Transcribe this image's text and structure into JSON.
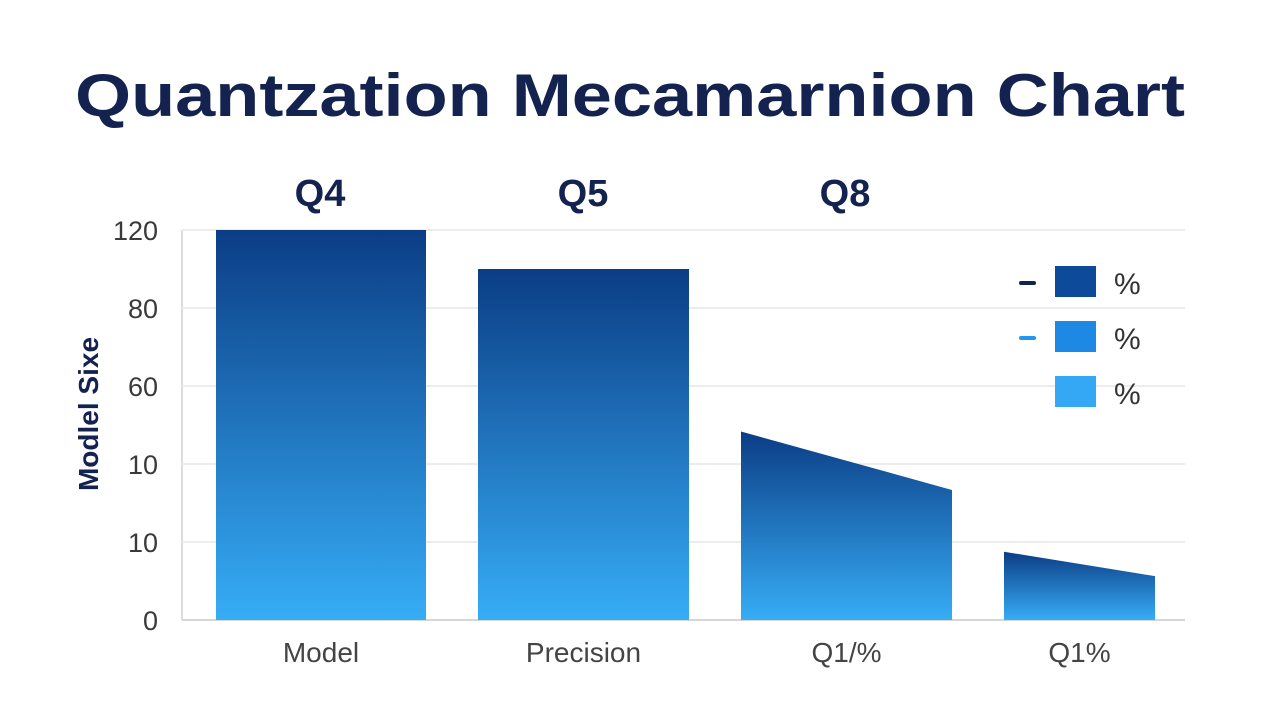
{
  "chart_data": {
    "type": "bar",
    "title": "Quantzation Mecamarnion Chart",
    "ylabel": "Modlel Sixe",
    "xlabel": "",
    "ylim": [
      0,
      120
    ],
    "y_tick_labels": [
      "0",
      "10",
      "10",
      "60",
      "80",
      "120"
    ],
    "grid": true,
    "top_labels": [
      "Q4",
      "Q5",
      "Q8"
    ],
    "categories": [
      "Model",
      "Precision",
      "Q1/%",
      "Q1%"
    ],
    "values_start": [
      120,
      108,
      58,
      21
    ],
    "values_end": [
      120,
      108,
      40,
      13.5
    ],
    "legend": {
      "placement": "top-right",
      "entries": [
        {
          "label": "%",
          "color": "#0d4a9a",
          "dash_color": "#13224f"
        },
        {
          "label": "%",
          "color": "#1e88e5",
          "dash_color": "#2196f3"
        },
        {
          "label": "%",
          "color": "#35a8f5",
          "dash_color": ""
        }
      ]
    },
    "colors": {
      "bar_top": "#0b3d85",
      "bar_bottom": "#36adf6",
      "title": "#13224f"
    }
  }
}
